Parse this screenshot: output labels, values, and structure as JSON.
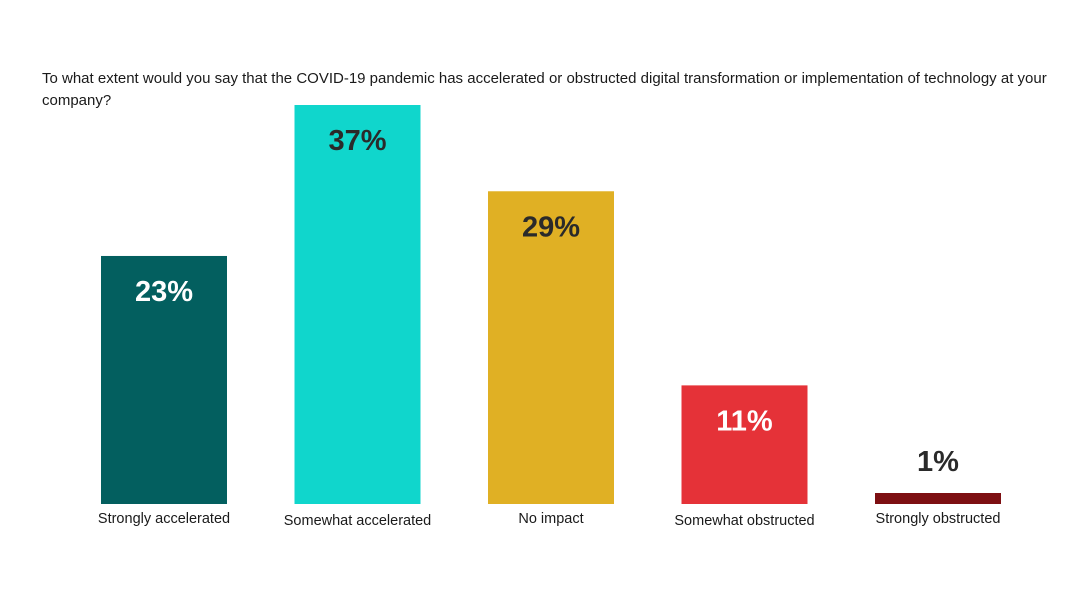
{
  "chart_data": {
    "type": "bar",
    "title": "To what extent would you say that the COVID-19 pandemic has accelerated or obstructed digital transformation or implementation of technology at your company?",
    "categories": [
      "Strongly accelerated",
      "Somewhat accelerated",
      "No impact",
      "Somewhat obstructed",
      "Strongly obstructed"
    ],
    "values": [
      23,
      37,
      29,
      11,
      1
    ],
    "value_labels": [
      "23%",
      "37%",
      "29%",
      "11%",
      "1%"
    ],
    "unit": "%",
    "colors": [
      "#035f5f",
      "#10d6cc",
      "#e0b024",
      "#e53238",
      "#7d0f12"
    ],
    "label_colors": [
      "#ffffff",
      "#2a2a2a",
      "#2a2a2a",
      "#ffffff",
      "#2a2a2a"
    ],
    "ylim": [
      0,
      37
    ],
    "grid": false,
    "legend": "none"
  }
}
